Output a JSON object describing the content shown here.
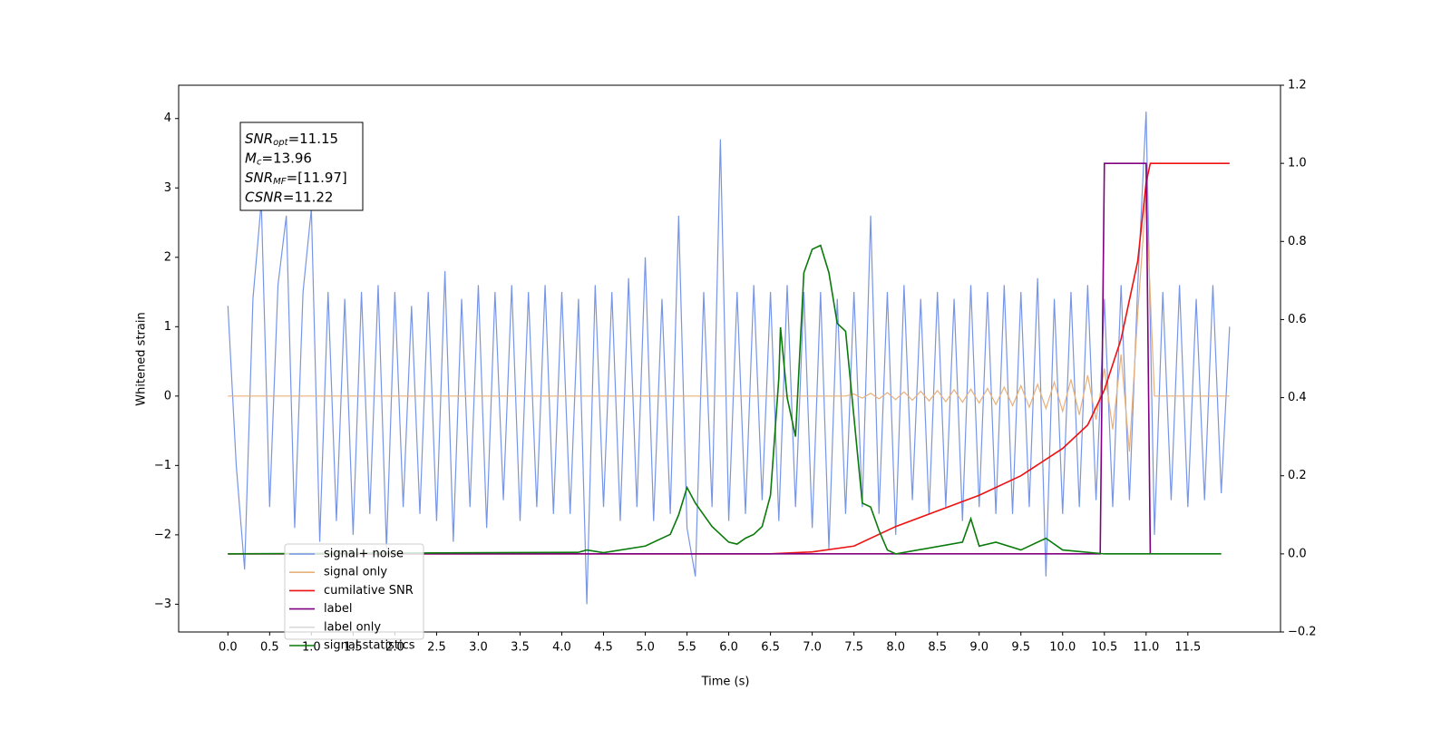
{
  "chart_data": {
    "type": "line",
    "xlabel": "Time (s)",
    "ylabel": "Whitened strain",
    "annotations": [
      {
        "symbol": "SNR",
        "subscript": "opt",
        "text": "=11.15"
      },
      {
        "symbol": "M",
        "subscript": "c",
        "text": "=13.96"
      },
      {
        "symbol": "SNR",
        "subscript": "MF",
        "text": "=[11.97]"
      },
      {
        "symbol": "CSNR",
        "text": "=11.22"
      }
    ],
    "xlim": [
      -0.59,
      12.61
    ],
    "ylim": [
      -3.4,
      4.48
    ],
    "y2lim": [
      -0.2,
      1.2
    ],
    "xticks": [
      {
        "value": 0,
        "label": "0.0"
      },
      0.5,
      {
        "value": 1,
        "label": "1.0"
      },
      1.5,
      {
        "value": 2,
        "label": "2.0"
      },
      2.5,
      {
        "value": 3,
        "label": "3.0"
      },
      3.5,
      {
        "value": 4,
        "label": "4.0"
      },
      4.5,
      {
        "value": 5,
        "label": "5.0"
      },
      5.5,
      {
        "value": 6,
        "label": "6.0"
      },
      6.5,
      {
        "value": 7,
        "label": "7.0"
      },
      7.5,
      {
        "value": 8,
        "label": "8.0"
      },
      8.5,
      {
        "value": 9,
        "label": "9.0"
      },
      9.5,
      {
        "value": 10,
        "label": "10.0"
      },
      10.5,
      {
        "value": 11,
        "label": "11.0"
      },
      11.5
    ],
    "yticks": [
      -3,
      -2,
      -1,
      0,
      1,
      2,
      3,
      4
    ],
    "y2ticks": [
      -0.2,
      {
        "value": 0,
        "label": "0.0"
      },
      0.2,
      0.4,
      0.6,
      0.8,
      {
        "value": 1,
        "label": "1.0"
      },
      1.2
    ],
    "series": [
      {
        "name": "signal+ noise",
        "color": "#7795e8",
        "axis": "y",
        "x": [
          0,
          0.1,
          0.2,
          0.3,
          0.4,
          0.5,
          0.6,
          0.7,
          0.8,
          0.9,
          1,
          1.1,
          1.2,
          1.3,
          1.4,
          1.5,
          1.6,
          1.7,
          1.8,
          1.9,
          2,
          2.1,
          2.2,
          2.3,
          2.4,
          2.5,
          2.6,
          2.7,
          2.8,
          2.9,
          3,
          3.1,
          3.2,
          3.3,
          3.4,
          3.5,
          3.6,
          3.7,
          3.8,
          3.9,
          4,
          4.1,
          4.2,
          4.3,
          4.4,
          4.5,
          4.6,
          4.7,
          4.8,
          4.9,
          5,
          5.1,
          5.2,
          5.3,
          5.4,
          5.5,
          5.6,
          5.7,
          5.8,
          5.9,
          6,
          6.1,
          6.2,
          6.3,
          6.4,
          6.5,
          6.6,
          6.7,
          6.8,
          6.9,
          7,
          7.1,
          7.2,
          7.3,
          7.4,
          7.5,
          7.6,
          7.7,
          7.8,
          7.9,
          8,
          8.1,
          8.2,
          8.3,
          8.4,
          8.5,
          8.6,
          8.7,
          8.8,
          8.9,
          9,
          9.1,
          9.2,
          9.3,
          9.4,
          9.5,
          9.6,
          9.7,
          9.8,
          9.9,
          10,
          10.1,
          10.2,
          10.3,
          10.4,
          10.5,
          10.6,
          10.7,
          10.8,
          10.9,
          11,
          11.1,
          11.2,
          11.3,
          11.4,
          11.5,
          11.6,
          11.7,
          11.8,
          11.9,
          12
        ],
        "values": [
          1.3,
          -1.0,
          -2.5,
          1.4,
          2.8,
          -1.6,
          1.6,
          2.6,
          -1.9,
          1.5,
          2.7,
          -2.1,
          1.5,
          -1.8,
          1.4,
          -2.0,
          1.5,
          -1.7,
          1.6,
          -2.2,
          1.5,
          -1.6,
          1.3,
          -1.7,
          1.5,
          -1.8,
          1.8,
          -2.1,
          1.4,
          -1.6,
          1.6,
          -1.9,
          1.5,
          -1.5,
          1.6,
          -1.8,
          1.5,
          -1.6,
          1.6,
          -1.7,
          1.5,
          -1.7,
          1.4,
          -3.0,
          1.6,
          -1.6,
          1.5,
          -1.8,
          1.7,
          -1.6,
          2.0,
          -1.8,
          1.4,
          -1.7,
          2.6,
          -1.9,
          -2.6,
          1.5,
          -1.6,
          3.7,
          -1.8,
          1.5,
          -1.7,
          1.6,
          -1.5,
          1.5,
          -1.8,
          1.6,
          -1.6,
          1.5,
          -1.9,
          1.5,
          -2.2,
          1.4,
          -1.7,
          1.5,
          -1.6,
          2.6,
          -1.7,
          1.5,
          -2.0,
          1.6,
          -1.5,
          1.4,
          -1.7,
          1.5,
          -1.6,
          1.4,
          -1.8,
          1.6,
          -1.6,
          1.5,
          -1.7,
          1.6,
          -1.7,
          1.5,
          -1.6,
          1.7,
          -2.6,
          1.4,
          -1.7,
          1.5,
          -1.6,
          1.6,
          -1.5,
          1.4,
          -1.6,
          1.6,
          -1.5,
          1.6,
          4.1,
          -2.0,
          1.5,
          -1.5,
          1.6,
          -1.6,
          1.4,
          -1.5,
          1.6,
          -1.4,
          1.0
        ]
      },
      {
        "name": "signal only",
        "color": "#e8b07a",
        "axis": "y",
        "x": [
          0,
          0.1,
          0.2,
          0.3,
          0.4,
          0.5,
          0.6,
          0.7,
          0.8,
          0.9,
          1,
          1.1,
          1.2,
          1.3,
          1.4,
          1.5,
          1.6,
          1.7,
          1.8,
          1.9,
          2,
          2.1,
          2.2,
          2.3,
          2.4,
          2.5,
          2.6,
          2.7,
          2.8,
          2.9,
          3,
          3.1,
          3.2,
          3.3,
          3.4,
          3.5,
          3.6,
          3.7,
          3.8,
          3.9,
          4,
          4.1,
          4.2,
          4.3,
          4.4,
          4.5,
          4.6,
          4.7,
          4.8,
          4.9,
          5,
          5.1,
          5.2,
          5.3,
          5.4,
          5.5,
          5.6,
          5.7,
          5.8,
          5.9,
          6,
          6.1,
          6.2,
          6.3,
          6.4,
          6.5,
          6.6,
          6.7,
          6.8,
          6.9,
          7,
          7.1,
          7.2,
          7.3,
          7.4,
          7.5,
          7.6,
          7.7,
          7.8,
          7.9,
          8,
          8.1,
          8.2,
          8.3,
          8.4,
          8.5,
          8.6,
          8.7,
          8.8,
          8.9,
          9,
          9.1,
          9.2,
          9.3,
          9.4,
          9.5,
          9.6,
          9.7,
          9.8,
          9.9,
          10,
          10.1,
          10.2,
          10.3,
          10.4,
          10.5,
          10.6,
          10.7,
          10.8,
          10.9,
          11,
          11.1,
          11.2,
          11.3,
          11.4,
          11.5,
          11.6,
          11.7,
          11.8,
          11.9,
          12
        ],
        "values": [
          0,
          0,
          0,
          0,
          0,
          0,
          0,
          0,
          0,
          0,
          0,
          0,
          0,
          0,
          0,
          0,
          0,
          0,
          0,
          0,
          0,
          0,
          0,
          0,
          0,
          0,
          0,
          0,
          0,
          0,
          0,
          0,
          0,
          0,
          0,
          0,
          0,
          0,
          0,
          0,
          0,
          0,
          0,
          0,
          0,
          0,
          0,
          0,
          0,
          0,
          0,
          0,
          0,
          0,
          0,
          0,
          0,
          0,
          0,
          0,
          0,
          0,
          0,
          0,
          0,
          0,
          0,
          0,
          0,
          0,
          0,
          0,
          0,
          0,
          0,
          0.03,
          -0.03,
          0.04,
          -0.04,
          0.05,
          -0.05,
          0.06,
          -0.06,
          0.07,
          -0.07,
          0.08,
          -0.08,
          0.09,
          -0.09,
          0.1,
          -0.1,
          0.11,
          -0.12,
          0.13,
          -0.14,
          0.15,
          -0.16,
          0.17,
          -0.18,
          0.2,
          -0.22,
          0.24,
          -0.27,
          0.3,
          -0.34,
          0.4,
          -0.48,
          0.6,
          -0.8,
          1.2,
          2.9,
          0,
          0,
          0,
          0,
          0,
          0,
          0,
          0,
          0,
          0
        ]
      },
      {
        "name": "cumilative SNR",
        "color": "#ee1111",
        "axis": "y2",
        "x": [
          0,
          6.5,
          7.0,
          7.5,
          8.0,
          8.5,
          9.0,
          9.5,
          10.0,
          10.3,
          10.5,
          10.7,
          10.9,
          11.0,
          11.05,
          12.0
        ],
        "values": [
          0,
          0,
          0.005,
          0.02,
          0.07,
          0.11,
          0.15,
          0.2,
          0.27,
          0.33,
          0.42,
          0.55,
          0.75,
          0.95,
          1.0,
          1.0
        ]
      },
      {
        "name": "label",
        "color": "#800080",
        "axis": "y2",
        "x": [
          0,
          10.45,
          10.5,
          11.0,
          11.05
        ],
        "values": [
          0,
          0,
          1,
          1,
          0
        ]
      },
      {
        "name": "label only",
        "color": "#d9d9d9",
        "axis": "y2",
        "x": [],
        "values": []
      },
      {
        "name": "signal statistics",
        "color": "#0a7a0a",
        "axis": "y2",
        "x": [
          0,
          4.2,
          4.3,
          4.5,
          5.0,
          5.3,
          5.4,
          5.5,
          5.6,
          5.7,
          5.8,
          5.9,
          6.0,
          6.1,
          6.2,
          6.3,
          6.4,
          6.5,
          6.6,
          6.62,
          6.7,
          6.8,
          6.9,
          7.0,
          7.1,
          7.2,
          7.3,
          7.4,
          7.5,
          7.6,
          7.7,
          7.8,
          7.9,
          8.0,
          8.8,
          8.9,
          9.0,
          9.2,
          9.5,
          9.8,
          10.0,
          10.5,
          11.9
        ],
        "values": [
          0,
          0.004,
          0.01,
          0.003,
          0.02,
          0.05,
          0.1,
          0.17,
          0.13,
          0.1,
          0.07,
          0.05,
          0.03,
          0.025,
          0.04,
          0.05,
          0.07,
          0.15,
          0.45,
          0.58,
          0.4,
          0.3,
          0.72,
          0.78,
          0.79,
          0.72,
          0.59,
          0.57,
          0.35,
          0.13,
          0.12,
          0.06,
          0.01,
          0,
          0.03,
          0.09,
          0.02,
          0.03,
          0.01,
          0.04,
          0.01,
          0,
          0
        ]
      }
    ]
  }
}
